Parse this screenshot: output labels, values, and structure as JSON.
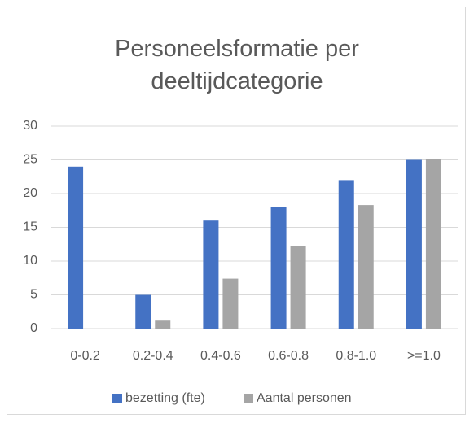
{
  "chart_data": {
    "type": "bar",
    "title": "Personeelsformatie per deeltijdcategorie",
    "categories": [
      "0-0.2",
      "0.2-0.4",
      "0.4-0.6",
      "0.6-0.8",
      "0.8-1.0",
      ">=1.0"
    ],
    "series": [
      {
        "name": "bezetting (fte)",
        "color": "#4472c4",
        "values": [
          24,
          5,
          16,
          18,
          22,
          25
        ]
      },
      {
        "name": "Aantal personen",
        "color": "#a5a5a5",
        "values": [
          0,
          1.3,
          7.4,
          12.2,
          18.3,
          25.1
        ]
      }
    ],
    "ylim": [
      0,
      30
    ],
    "yticks": [
      0,
      5,
      10,
      15,
      20,
      25,
      30
    ],
    "grid": true,
    "legend": "bottom"
  }
}
